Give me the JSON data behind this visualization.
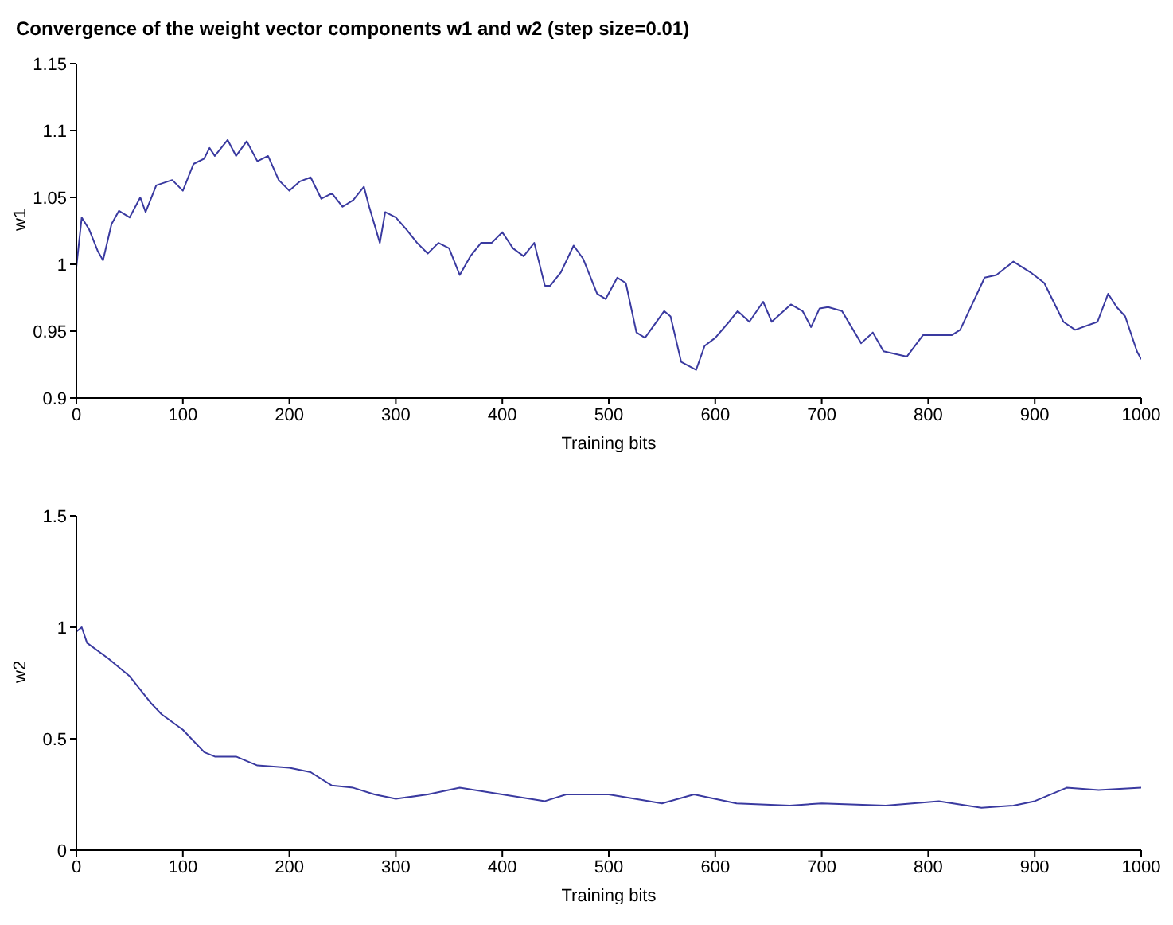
{
  "chart_data": [
    {
      "type": "line",
      "title": "Convergence of the weight vector components w1 and w2  (step size=0.01)",
      "xlabel": "Training bits",
      "ylabel": "w1",
      "xlim": [
        0,
        1000
      ],
      "xticks": [
        0,
        100,
        200,
        300,
        400,
        500,
        600,
        700,
        800,
        900,
        1000
      ],
      "ylim": [
        0.9,
        1.15
      ],
      "yticks": [
        0.9,
        0.95,
        1,
        1.05,
        1.1,
        1.15
      ],
      "series": [
        {
          "color": "#3a3aa0",
          "x": [
            0,
            5,
            12,
            20,
            25,
            33,
            40,
            50,
            60,
            65,
            75,
            90,
            100,
            110,
            120,
            125,
            130,
            142,
            150,
            160,
            170,
            180,
            190,
            200,
            210,
            220,
            230,
            240,
            250,
            260,
            270,
            275,
            285,
            290,
            300,
            310,
            320,
            330,
            340,
            350,
            360,
            370,
            380,
            390,
            400,
            410,
            420,
            430,
            440,
            445,
            455,
            467,
            476,
            489,
            497,
            508,
            516,
            526,
            534,
            552,
            558,
            568,
            582,
            590,
            600,
            613,
            621,
            632,
            645,
            653,
            671,
            682,
            690,
            698,
            706,
            719,
            737,
            748,
            758,
            780,
            795,
            822,
            830,
            853,
            864,
            880,
            896,
            909,
            927,
            938,
            959,
            969,
            977,
            985,
            996,
            1000
          ],
          "values": [
            0.998,
            1.035,
            1.026,
            1.01,
            1.003,
            1.03,
            1.04,
            1.035,
            1.05,
            1.039,
            1.059,
            1.063,
            1.055,
            1.075,
            1.079,
            1.087,
            1.081,
            1.093,
            1.081,
            1.092,
            1.077,
            1.081,
            1.063,
            1.055,
            1.062,
            1.065,
            1.049,
            1.053,
            1.043,
            1.048,
            1.058,
            1.043,
            1.016,
            1.039,
            1.035,
            1.026,
            1.016,
            1.008,
            1.016,
            1.012,
            0.992,
            1.006,
            1.016,
            1.016,
            1.024,
            1.012,
            1.006,
            1.016,
            0.984,
            0.984,
            0.994,
            1.014,
            1.004,
            0.978,
            0.974,
            0.99,
            0.986,
            0.949,
            0.945,
            0.965,
            0.961,
            0.927,
            0.921,
            0.939,
            0.945,
            0.957,
            0.965,
            0.957,
            0.972,
            0.957,
            0.97,
            0.965,
            0.953,
            0.967,
            0.968,
            0.965,
            0.941,
            0.949,
            0.935,
            0.931,
            0.947,
            0.947,
            0.951,
            0.99,
            0.992,
            1.002,
            0.994,
            0.986,
            0.957,
            0.951,
            0.957,
            0.978,
            0.968,
            0.961,
            0.935,
            0.929
          ]
        }
      ]
    },
    {
      "type": "line",
      "xlabel": "Training bits",
      "ylabel": "w2",
      "xlim": [
        0,
        1000
      ],
      "xticks": [
        0,
        100,
        200,
        300,
        400,
        500,
        600,
        700,
        800,
        900,
        1000
      ],
      "ylim": [
        0,
        1.5
      ],
      "yticks": [
        0,
        0.5,
        1,
        1.5
      ],
      "series": [
        {
          "color": "#3a3aa0",
          "x": [
            0,
            5,
            10,
            30,
            50,
            70,
            80,
            100,
            120,
            130,
            150,
            170,
            200,
            220,
            240,
            260,
            280,
            300,
            330,
            360,
            400,
            440,
            460,
            500,
            550,
            580,
            620,
            670,
            700,
            760,
            810,
            850,
            880,
            900,
            930,
            960,
            1000
          ],
          "values": [
            0.98,
            1.0,
            0.93,
            0.86,
            0.78,
            0.66,
            0.61,
            0.54,
            0.44,
            0.42,
            0.42,
            0.38,
            0.37,
            0.35,
            0.29,
            0.28,
            0.25,
            0.23,
            0.25,
            0.28,
            0.25,
            0.22,
            0.25,
            0.25,
            0.21,
            0.25,
            0.21,
            0.2,
            0.21,
            0.2,
            0.22,
            0.19,
            0.2,
            0.22,
            0.28,
            0.27,
            0.28
          ]
        }
      ]
    }
  ]
}
